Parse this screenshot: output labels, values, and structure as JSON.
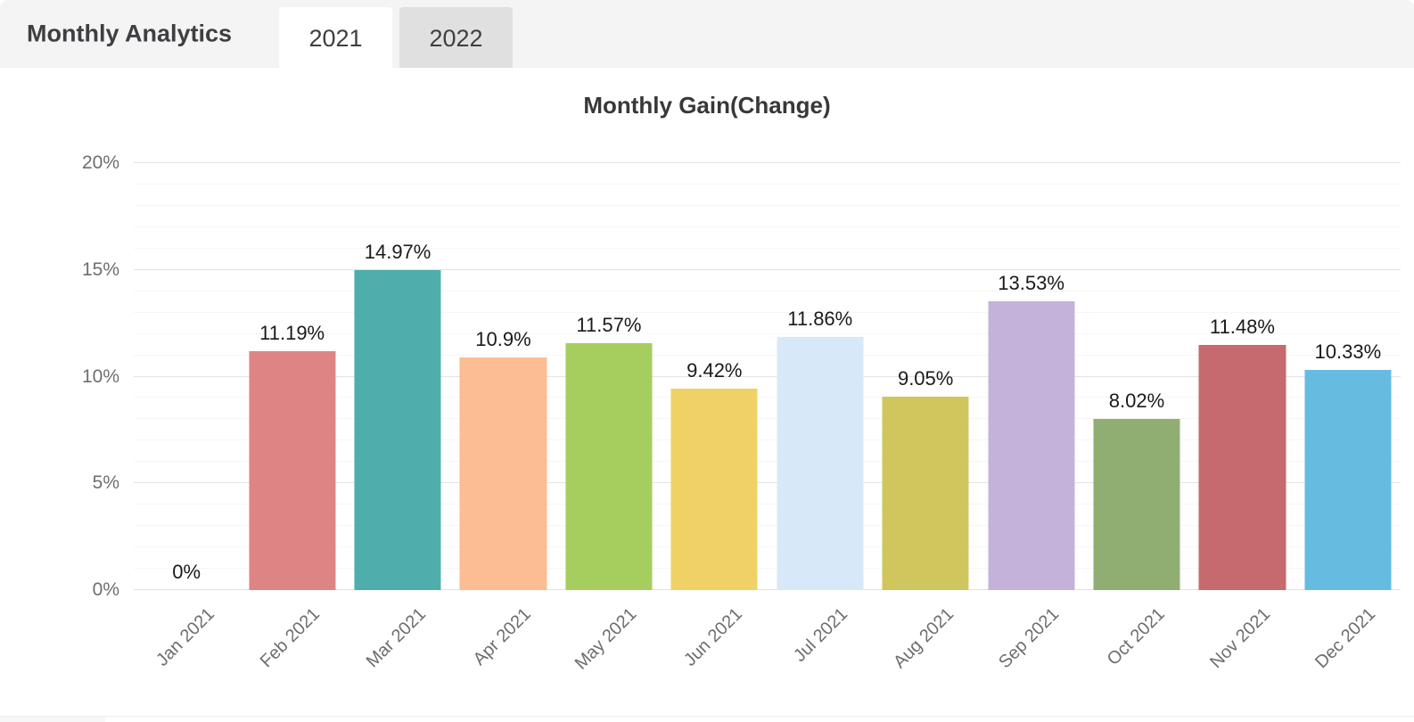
{
  "header": {
    "title": "Monthly Analytics",
    "tabs": [
      {
        "label": "2021",
        "active": true
      },
      {
        "label": "2022",
        "active": false
      }
    ]
  },
  "chart_data": {
    "type": "bar",
    "title": "Monthly Gain(Change)",
    "categories": [
      "Jan 2021",
      "Feb 2021",
      "Mar 2021",
      "Apr 2021",
      "May 2021",
      "Jun 2021",
      "Jul 2021",
      "Aug 2021",
      "Sep 2021",
      "Oct 2021",
      "Nov 2021",
      "Dec 2021"
    ],
    "values": [
      0,
      11.19,
      14.97,
      10.9,
      11.57,
      9.42,
      11.86,
      9.05,
      13.53,
      8.02,
      11.48,
      10.33
    ],
    "value_labels": [
      "0%",
      "11.19%",
      "14.97%",
      "10.9%",
      "11.57%",
      "9.42%",
      "11.86%",
      "9.05%",
      "13.53%",
      "8.02%",
      "11.48%",
      "10.33%"
    ],
    "bar_colors": [
      null,
      "#DE8485",
      "#4FAEAB",
      "#FBBD91",
      "#A6CE5E",
      "#F0D166",
      "#D7E9F8",
      "#CFC75E",
      "#C4B2DA",
      "#90AE72",
      "#C66A6D",
      "#66BBE0"
    ],
    "ylim": [
      0,
      20
    ],
    "yticks": [
      {
        "value": 0,
        "label": "0%"
      },
      {
        "value": 5,
        "label": "5%"
      },
      {
        "value": 10,
        "label": "10%"
      },
      {
        "value": 15,
        "label": "15%"
      },
      {
        "value": 20,
        "label": "20%"
      }
    ],
    "grid": {
      "minor_step": 1,
      "major_step": 5,
      "visible": true
    },
    "legend": "none",
    "xlabel": "",
    "ylabel": ""
  },
  "colors": {
    "header_bg": "#f4f4f4",
    "tab_active_bg": "#ffffff",
    "tab_inactive_bg": "#e0e0e0",
    "heading_text": "#3d3f42",
    "axis_text": "#6e6e6e",
    "value_label_text": "#1a1a1a",
    "grid_major": "#e3e3e3",
    "grid_minor": "#f6f6f6"
  }
}
